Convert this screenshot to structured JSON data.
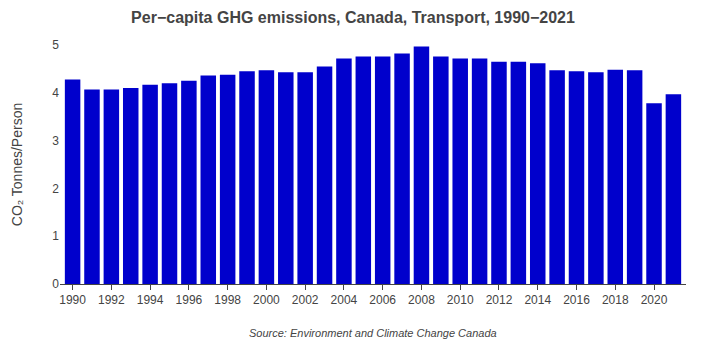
{
  "chart_data": {
    "type": "bar",
    "title": "Per−capita GHG emissions, Canada, Transport, 1990−2021",
    "ylabel": "CO₂ Tonnes/Person",
    "annotations": [
      "Source: Environment and Climate Change Canada"
    ],
    "x": [
      1990,
      1991,
      1992,
      1993,
      1994,
      1995,
      1996,
      1997,
      1998,
      1999,
      2000,
      2001,
      2002,
      2003,
      2004,
      2005,
      2006,
      2007,
      2008,
      2009,
      2010,
      2011,
      2012,
      2013,
      2014,
      2015,
      2016,
      2017,
      2018,
      2019,
      2020,
      2021
    ],
    "values": [
      4.28,
      4.07,
      4.07,
      4.1,
      4.17,
      4.2,
      4.25,
      4.36,
      4.38,
      4.45,
      4.47,
      4.43,
      4.43,
      4.55,
      4.72,
      4.76,
      4.76,
      4.82,
      4.97,
      4.76,
      4.72,
      4.72,
      4.65,
      4.65,
      4.62,
      4.47,
      4.45,
      4.43,
      4.48,
      4.47,
      3.78,
      3.97
    ],
    "color": "#0000CC",
    "xlim": [
      1989.35,
      2021.65
    ],
    "xticks": [
      1990,
      1992,
      1994,
      1996,
      1998,
      2000,
      2002,
      2004,
      2006,
      2008,
      2010,
      2012,
      2014,
      2016,
      2018,
      2020
    ],
    "ylim": [
      0,
      5
    ],
    "yticks": [
      0,
      1,
      2,
      3,
      4,
      5
    ],
    "grid": false
  }
}
